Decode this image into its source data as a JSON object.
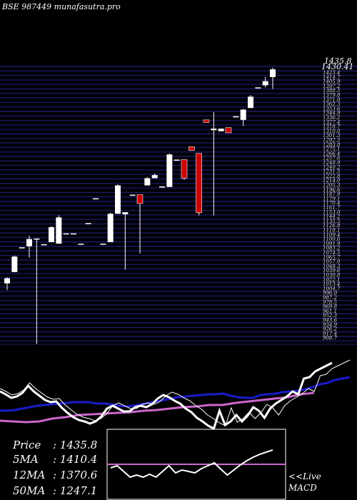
{
  "header": {
    "title": "BSE 987449 munafasutra.pro"
  },
  "chart_data": {
    "type": "candlestick",
    "price_range": [
      900,
      1440
    ],
    "last_price_label": "1435.8",
    "second_price_label": "1430.41",
    "candles": [
      {
        "o": 1018,
        "h": 1030,
        "l": 1005,
        "c": 1028
      },
      {
        "o": 1040,
        "h": 1072,
        "l": 1040,
        "c": 1070
      },
      {
        "o": 1088,
        "h": 1088,
        "l": 1088,
        "c": 1088
      },
      {
        "o": 1090,
        "h": 1110,
        "l": 1068,
        "c": 1104
      },
      {
        "o": 1103,
        "h": 1103,
        "l": 900,
        "c": 1105
      },
      {
        "o": 1094,
        "h": 1094,
        "l": 1094,
        "c": 1094
      },
      {
        "o": 1098,
        "h": 1129,
        "l": 1098,
        "c": 1127
      },
      {
        "o": 1095,
        "h": 1150,
        "l": 1095,
        "c": 1146
      },
      {
        "o": 1115,
        "h": 1115,
        "l": 1115,
        "c": 1115
      },
      {
        "o": 1115,
        "h": 1115,
        "l": 1115,
        "c": 1115
      },
      {
        "o": 1095,
        "h": 1095,
        "l": 1095,
        "c": 1095
      },
      {
        "o": 1135,
        "h": 1135,
        "l": 1135,
        "c": 1135
      },
      {
        "o": 1183,
        "h": 1183,
        "l": 1183,
        "c": 1183
      },
      {
        "o": 1095,
        "h": 1095,
        "l": 1095,
        "c": 1095
      },
      {
        "o": 1098,
        "h": 1155,
        "l": 1098,
        "c": 1153
      },
      {
        "o": 1153,
        "h": 1210,
        "l": 1153,
        "c": 1208
      },
      {
        "o": 1152,
        "h": 1155,
        "l": 1045,
        "c": 1156
      },
      {
        "o": 1188,
        "h": 1188,
        "l": 1188,
        "c": 1190
      },
      {
        "o": 1190,
        "h": 1190,
        "l": 1076,
        "c": 1173
      },
      {
        "o": 1208,
        "h": 1224,
        "l": 1208,
        "c": 1222
      },
      {
        "o": 1222,
        "h": 1231,
        "l": 1222,
        "c": 1228
      },
      {
        "o": 1206,
        "h": 1206,
        "l": 1206,
        "c": 1206
      },
      {
        "o": 1205,
        "h": 1270,
        "l": 1205,
        "c": 1268
      },
      {
        "o": 1258,
        "h": 1258,
        "l": 1258,
        "c": 1258
      },
      {
        "o": 1258,
        "h": 1258,
        "l": 1219,
        "c": 1222
      },
      {
        "o": 1283,
        "h": 1283,
        "l": 1276,
        "c": 1276
      },
      {
        "o": 1270,
        "h": 1270,
        "l": 1150,
        "c": 1155
      },
      {
        "o": 1335,
        "h": 1335,
        "l": 1330,
        "c": 1330
      },
      {
        "o": 1315,
        "h": 1350,
        "l": 1150,
        "c": 1318
      },
      {
        "o": 1313,
        "h": 1313,
        "l": 1313,
        "c": 1318
      },
      {
        "o": 1320,
        "h": 1320,
        "l": 1310,
        "c": 1310
      },
      {
        "o": 1342,
        "h": 1342,
        "l": 1342,
        "c": 1342
      },
      {
        "o": 1335,
        "h": 1356,
        "l": 1323,
        "c": 1355
      },
      {
        "o": 1358,
        "h": 1383,
        "l": 1358,
        "c": 1380
      },
      {
        "o": 1398,
        "h": 1398,
        "l": 1398,
        "c": 1398
      },
      {
        "o": 1402,
        "h": 1418,
        "l": 1398,
        "c": 1410
      },
      {
        "o": 1418,
        "h": 1436,
        "l": 1395,
        "c": 1433
      }
    ],
    "macd_sub": {
      "white": [
        548,
        552,
        557,
        555,
        550,
        540,
        548,
        554,
        560,
        563,
        562,
        571,
        578,
        584,
        588,
        590,
        593,
        590,
        583,
        572,
        568,
        572,
        576,
        576,
        570,
        568,
        570,
        566,
        558,
        553,
        556,
        561,
        565,
        572,
        577,
        585,
        590,
        596,
        600,
        575,
        595,
        590,
        581,
        590,
        582,
        570,
        575,
        585,
        572,
        565,
        560,
        555,
        548,
        552,
        530,
        528,
        520,
        516,
        512,
        508
      ],
      "blue": [
        575,
        575,
        574,
        572,
        570,
        568,
        567,
        566,
        565,
        564,
        563,
        563,
        563,
        565,
        565,
        566,
        568,
        569,
        568,
        566,
        564,
        562,
        560,
        558,
        556,
        555,
        554,
        553,
        552,
        552,
        551,
        554,
        556,
        557,
        557,
        553,
        552,
        551,
        549,
        548,
        547,
        545,
        542,
        538,
        536,
        532,
        530,
        528
      ],
      "magenta": [
        589,
        590,
        591,
        590,
        586,
        584,
        581,
        580,
        579,
        578,
        577,
        575,
        574,
        572,
        570,
        569,
        567,
        567,
        564,
        562,
        560,
        558,
        556,
        552,
        550
      ]
    },
    "inset_line": [
      655,
      652,
      660,
      668,
      665,
      668,
      664,
      668,
      660,
      652,
      662,
      658,
      660,
      662,
      656,
      652,
      648,
      657,
      665,
      658,
      651,
      645,
      640,
      636,
      633,
      630
    ],
    "inset_baseline": 650
  },
  "stats": [
    {
      "label": "Price",
      "value": ": 1435.8"
    },
    {
      "label": "5MA",
      "value": ": 1410.4"
    },
    {
      "label": "12MA",
      "value": ": 1370.6"
    },
    {
      "label": "50MA",
      "value": ": 1247.1"
    }
  ],
  "live_macd": [
    "<<Live",
    "MACD"
  ],
  "colors": {
    "background": "#000000",
    "grid": "#1a1a6e",
    "up": "#ffffff",
    "down": "#cc0000",
    "ma_blue": "#1a1acc",
    "ma_magenta": "#cc66cc",
    "text": "#ffffff"
  }
}
